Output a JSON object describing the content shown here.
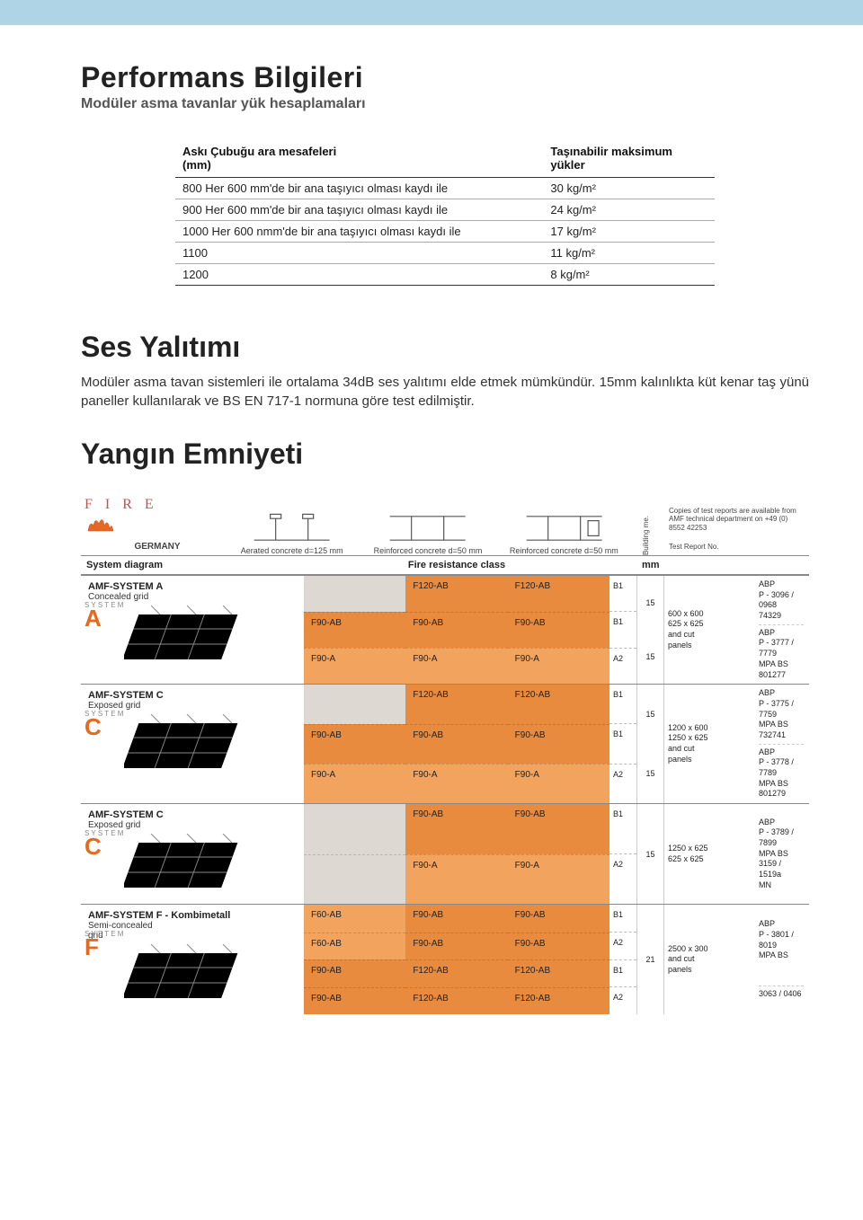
{
  "colors": {
    "topbar": "#aed4e6",
    "orange": "#e88b3e",
    "light_orange": "#f2a45e",
    "grey_cell": "#ddd8d2"
  },
  "title": "Performans Bilgileri",
  "subtitle": "Modüler asma tavanlar yük hesaplamaları",
  "load_table": {
    "head_left": "Askı Çubuğu ara mesafeleri\n(mm)",
    "head_right": "Taşınabilir maksimum\nyükler",
    "rows": [
      {
        "l": "800 Her 600 mm'de bir ana taşıyıcı olması kaydı ile",
        "r": "30 kg/m²"
      },
      {
        "l": "900 Her 600 mm'de bir ana taşıyıcı olması kaydı ile",
        "r": "24 kg/m²"
      },
      {
        "l": "1000 Her 600 nmm'de bir ana taşıyıcı olması kaydı ile",
        "r": "17 kg/m²"
      },
      {
        "l": "1100",
        "r": "11 kg/m²"
      },
      {
        "l": "1200",
        "r": "8 kg/m²"
      }
    ]
  },
  "ses_title": "Ses Yalıtımı",
  "ses_body": "Modüler asma tavan sistemleri ile ortalama 34dB ses yalıtımı elde etmek mümkündür. 15mm kalınlıkta küt kenar taş yünü paneller kullanılarak ve BS EN 717-1 normuna göre test edilmiştir.",
  "yangin_title": "Yangın Emniyeti",
  "fire": {
    "logo": "F I R E",
    "country": "GERMANY",
    "ceiling_labels": {
      "c1": "Aerated concrete d=125 mm",
      "c2": "Reinforced concrete d=50 mm",
      "c3": "Reinforced concrete d=50 mm",
      "building_me": "Building me."
    },
    "right_info_1": "Copies of test reports are available from AMF technical department on +49 (0) 8552 42253",
    "right_info_2": "Test Report No.",
    "header": {
      "sys": "System diagram",
      "fire": "Fire resistance class",
      "mm": "mm"
    },
    "systems": [
      {
        "letter": "A",
        "title": "AMF-SYSTEM A",
        "subtitle": "Concealed grid",
        "fire_rows": [
          {
            "cells": [
              {
                "v": "",
                "c": "grey"
              },
              {
                "v": "F120-AB",
                "c": "orange"
              },
              {
                "v": "F120-AB",
                "c": "orange"
              }
            ],
            "b": "B1"
          },
          {
            "cells": [
              {
                "v": "F90-AB",
                "c": "orange"
              },
              {
                "v": "F90-AB",
                "c": "orange"
              },
              {
                "v": "F90-AB",
                "c": "orange"
              }
            ],
            "b": "B1"
          },
          {
            "cells": [
              {
                "v": "F90-A",
                "c": "l-orange"
              },
              {
                "v": "F90-A",
                "c": "l-orange"
              },
              {
                "v": "F90-A",
                "c": "l-orange"
              }
            ],
            "b": "A2"
          }
        ],
        "mm": [
          "15",
          "15"
        ],
        "panels": "600 x 600\n625 x 625\nand cut\npanels",
        "reports": [
          "ABP\nP - 3096 / 0968\n74329",
          "ABP\nP - 3777 / 7779\nMPA BS\n801277"
        ]
      },
      {
        "letter": "C",
        "title": "AMF-SYSTEM C",
        "subtitle": "Exposed grid",
        "fire_rows": [
          {
            "cells": [
              {
                "v": "",
                "c": "grey"
              },
              {
                "v": "F120-AB",
                "c": "orange"
              },
              {
                "v": "F120-AB",
                "c": "orange"
              }
            ],
            "b": "B1"
          },
          {
            "cells": [
              {
                "v": "F90-AB",
                "c": "orange"
              },
              {
                "v": "F90-AB",
                "c": "orange"
              },
              {
                "v": "F90-AB",
                "c": "orange"
              }
            ],
            "b": "B1"
          },
          {
            "cells": [
              {
                "v": "F90-A",
                "c": "l-orange"
              },
              {
                "v": "F90-A",
                "c": "l-orange"
              },
              {
                "v": "F90-A",
                "c": "l-orange"
              }
            ],
            "b": "A2"
          }
        ],
        "mm": [
          "15",
          "15"
        ],
        "panels": "1200 x 600\n1250 x 625\nand cut\npanels",
        "reports": [
          "ABP\nP - 3775 / 7759\nMPA BS\n732741",
          "ABP\nP - 3778 / 7789\nMPA BS\n801279"
        ]
      },
      {
        "letter": "C",
        "title": "AMF-SYSTEM C",
        "subtitle": "Exposed grid",
        "fire_rows": [
          {
            "cells": [
              {
                "v": "",
                "c": "grey"
              },
              {
                "v": "F90-AB",
                "c": "orange"
              },
              {
                "v": "F90-AB",
                "c": "orange"
              }
            ],
            "b": "B1"
          },
          {
            "cells": [
              {
                "v": "",
                "c": "grey"
              },
              {
                "v": "F90-A",
                "c": "l-orange"
              },
              {
                "v": "F90-A",
                "c": "l-orange"
              }
            ],
            "b": "A2"
          }
        ],
        "mm": [
          "15"
        ],
        "panels": "1250 x 625\n625 x 625",
        "reports": [
          "ABP\nP - 3789 / 7899\nMPA BS\n3159 / 1519a\nMN"
        ]
      },
      {
        "letter": "F",
        "title": "AMF-SYSTEM F - Kombimetall",
        "subtitle": "Semi-concealed\ngrid",
        "fire_rows": [
          {
            "cells": [
              {
                "v": "F60-AB",
                "c": "l-orange"
              },
              {
                "v": "F90-AB",
                "c": "orange"
              },
              {
                "v": "F90-AB",
                "c": "orange"
              }
            ],
            "b": "B1"
          },
          {
            "cells": [
              {
                "v": "F60-AB",
                "c": "l-orange"
              },
              {
                "v": "F90-AB",
                "c": "orange"
              },
              {
                "v": "F90-AB",
                "c": "orange"
              }
            ],
            "b": "A2"
          },
          {
            "cells": [
              {
                "v": "F90-AB",
                "c": "orange"
              },
              {
                "v": "F120-AB",
                "c": "orange"
              },
              {
                "v": "F120-AB",
                "c": "orange"
              }
            ],
            "b": "B1"
          },
          {
            "cells": [
              {
                "v": "F90-AB",
                "c": "orange"
              },
              {
                "v": "F120-AB",
                "c": "orange"
              },
              {
                "v": "F120-AB",
                "c": "orange"
              }
            ],
            "b": "A2"
          }
        ],
        "mm": [
          "21"
        ],
        "panels": "2500 x 300\nand cut\npanels",
        "reports": [
          "ABP\nP - 3801 / 8019\nMPA BS",
          "3063 / 0406"
        ]
      }
    ]
  }
}
